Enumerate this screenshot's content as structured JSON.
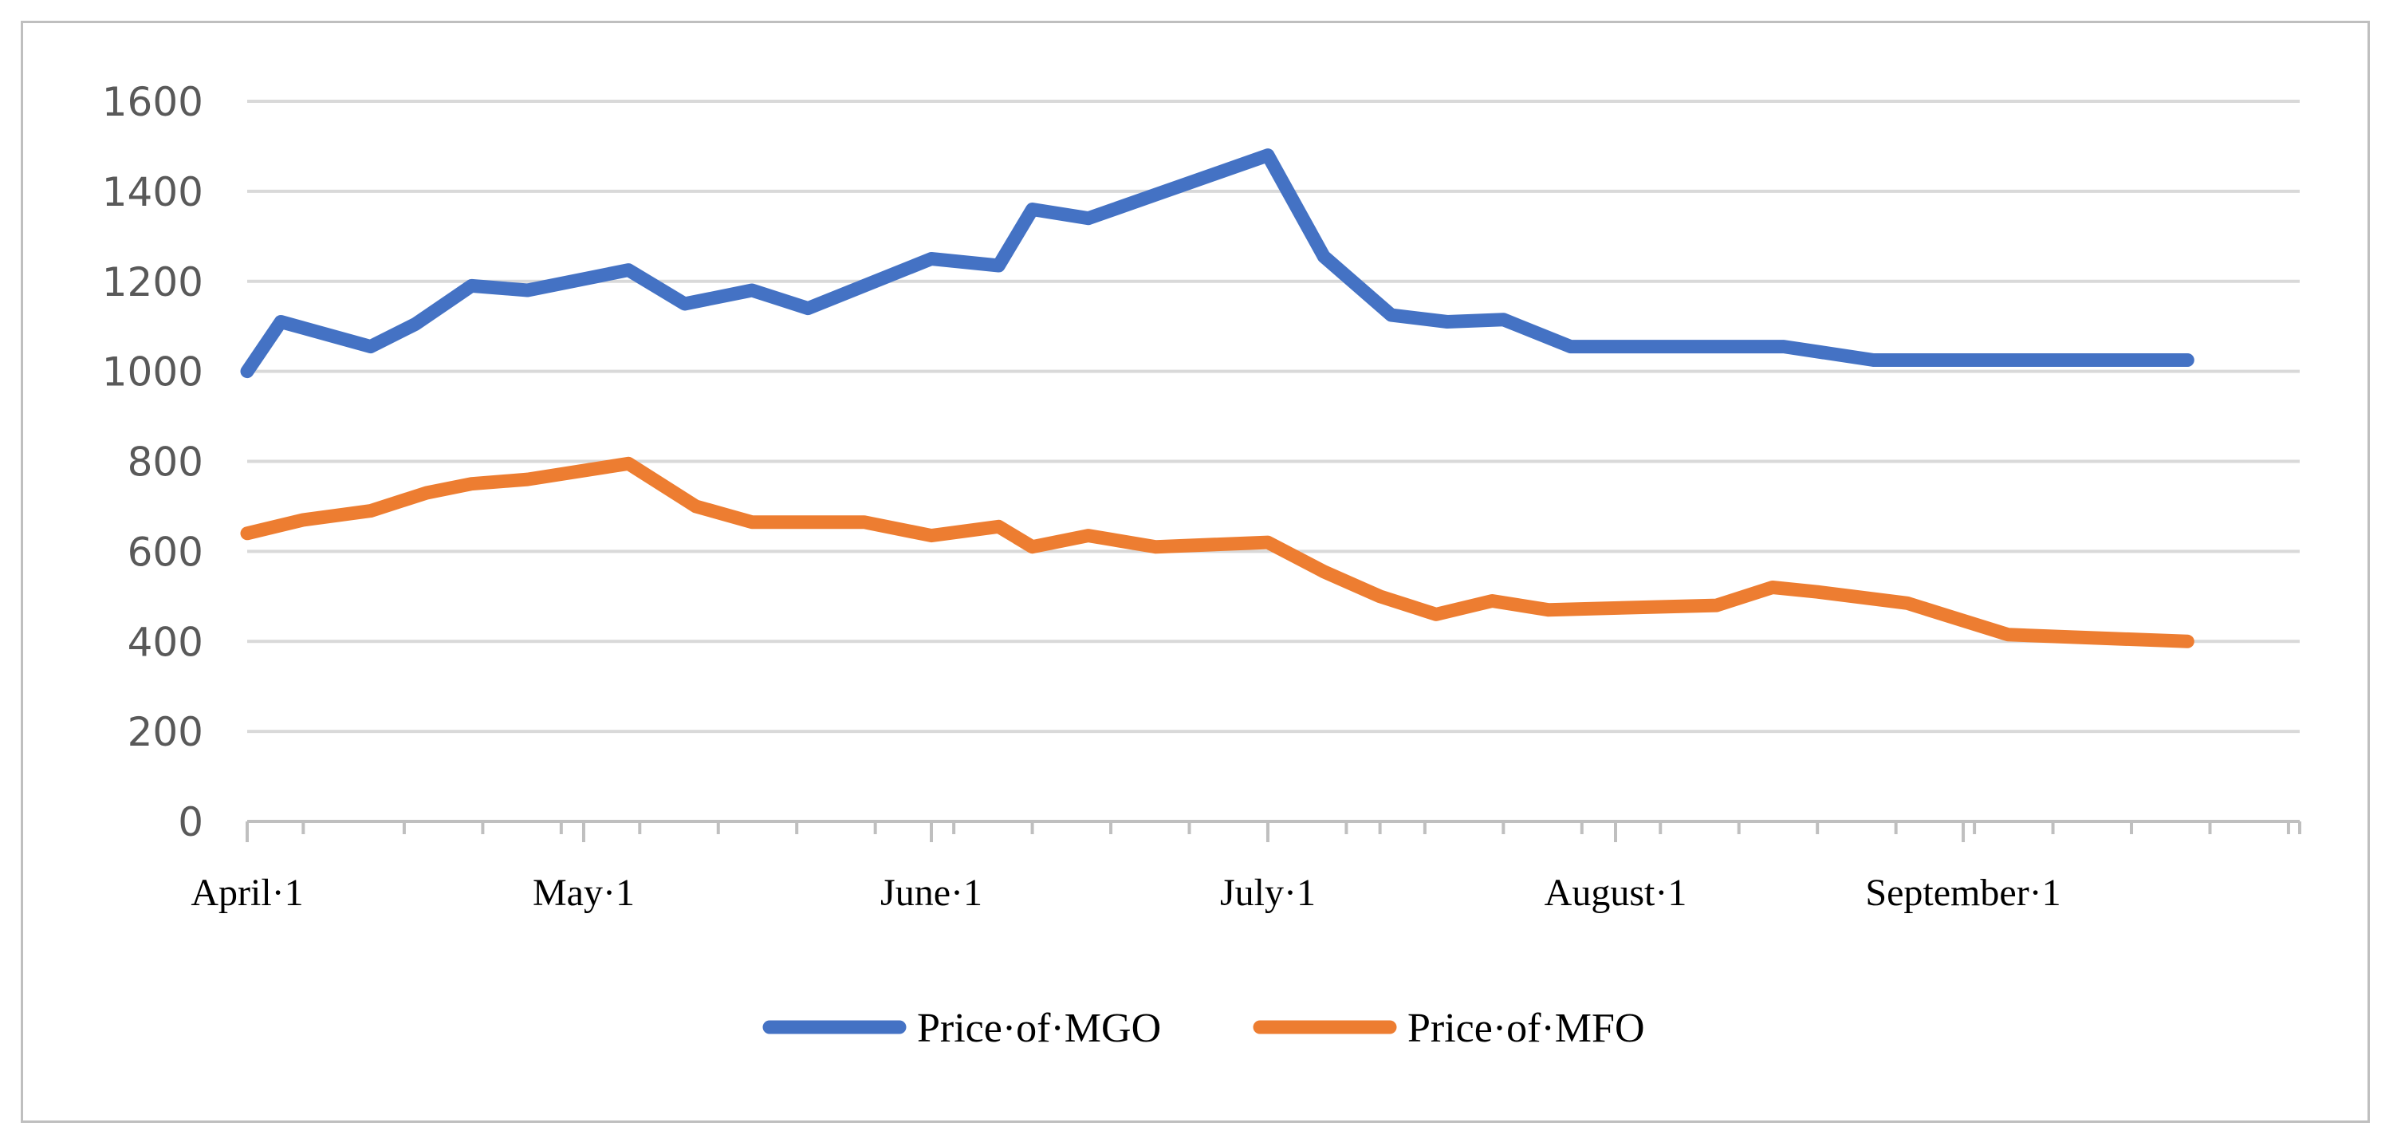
{
  "chart_data": {
    "type": "line",
    "title": "",
    "xlabel": "",
    "ylabel": "",
    "ylim": [
      0,
      1600
    ],
    "yticks": [
      0,
      200,
      400,
      600,
      800,
      1000,
      1200,
      1400,
      1600
    ],
    "grid": true,
    "legend_position": "bottom",
    "x_range": [
      0,
      183
    ],
    "x": [
      0,
      5,
      14,
      21,
      28,
      35,
      42,
      49,
      56,
      63,
      70,
      77,
      84,
      91,
      98,
      101,
      105,
      112,
      119,
      126,
      133,
      140,
      147,
      154,
      161,
      168,
      175,
      182,
      183
    ],
    "xtick_labels": [
      {
        "label": "April·1",
        "day": 0
      },
      {
        "label": "May·1",
        "day": 30
      },
      {
        "label": "June·1",
        "day": 61
      },
      {
        "label": "July·1",
        "day": 91
      },
      {
        "label": "August·1",
        "day": 122
      },
      {
        "label": "September·1",
        "day": 153
      }
    ],
    "series": [
      {
        "name": "Price·of·MGO",
        "color": "#4472c4",
        "points": [
          [
            0,
            1000
          ],
          [
            3,
            1110
          ],
          [
            11,
            1055
          ],
          [
            15,
            1105
          ],
          [
            20,
            1190
          ],
          [
            25,
            1180
          ],
          [
            34,
            1225
          ],
          [
            39,
            1150
          ],
          [
            45,
            1180
          ],
          [
            50,
            1140
          ],
          [
            61,
            1250
          ],
          [
            67,
            1235
          ],
          [
            70,
            1360
          ],
          [
            75,
            1340
          ],
          [
            91,
            1480
          ],
          [
            96,
            1255
          ],
          [
            102,
            1125
          ],
          [
            107,
            1110
          ],
          [
            112,
            1115
          ],
          [
            118,
            1055
          ],
          [
            137,
            1055
          ],
          [
            145,
            1025
          ],
          [
            173,
            1025
          ]
        ]
      },
      {
        "name": "Price·of·MFO",
        "color": "#ed7d31",
        "points": [
          [
            0,
            640
          ],
          [
            5,
            670
          ],
          [
            11,
            690
          ],
          [
            16,
            730
          ],
          [
            20,
            750
          ],
          [
            25,
            760
          ],
          [
            34,
            795
          ],
          [
            40,
            700
          ],
          [
            45,
            665
          ],
          [
            55,
            665
          ],
          [
            61,
            635
          ],
          [
            67,
            655
          ],
          [
            70,
            610
          ],
          [
            75,
            635
          ],
          [
            81,
            610
          ],
          [
            91,
            620
          ],
          [
            96,
            555
          ],
          [
            101,
            500
          ],
          [
            106,
            460
          ],
          [
            111,
            490
          ],
          [
            116,
            470
          ],
          [
            131,
            480
          ],
          [
            136,
            520
          ],
          [
            140,
            510
          ],
          [
            148,
            485
          ],
          [
            157,
            415
          ],
          [
            173,
            400
          ]
        ]
      }
    ]
  }
}
